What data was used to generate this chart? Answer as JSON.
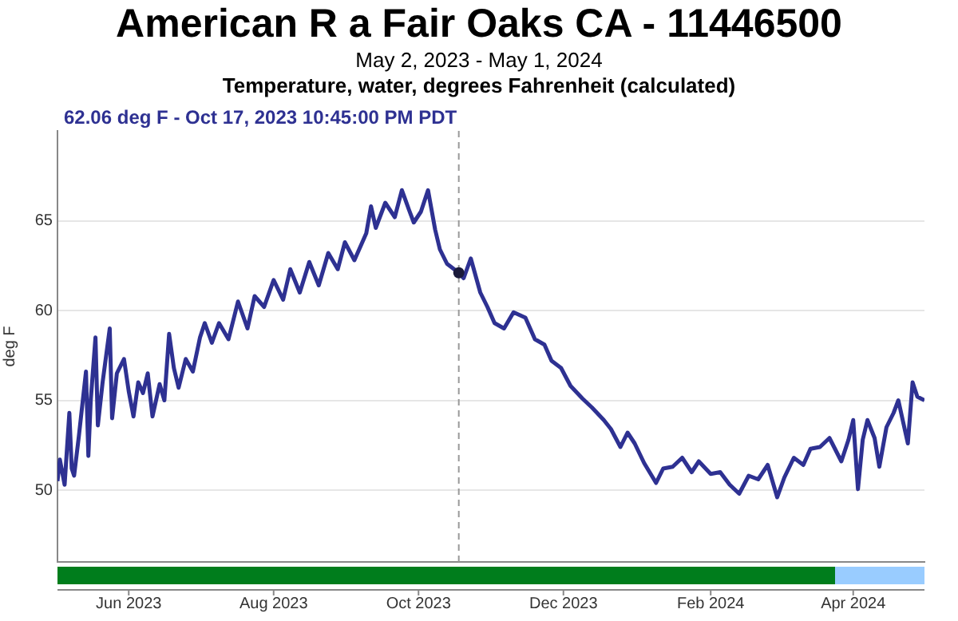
{
  "chart_data": {
    "type": "line",
    "title": "American R a Fair Oaks CA - 11446500",
    "subtitle": "May 2, 2023 - May 1, 2024",
    "ylabel": "deg F",
    "annotations": [
      "Temperature, water, degrees Fahrenheit (calculated)",
      "62.06 deg F - Oct 17, 2023 10:45:00 PM PDT"
    ],
    "x": [
      "2023-05-02",
      "2023-05-03",
      "2023-05-05",
      "2023-05-07",
      "2023-05-08",
      "2023-05-09",
      "2023-05-11",
      "2023-05-14",
      "2023-05-15",
      "2023-05-16",
      "2023-05-18",
      "2023-05-19",
      "2023-05-21",
      "2023-05-24",
      "2023-05-25",
      "2023-05-27",
      "2023-05-30",
      "2023-06-01",
      "2023-06-03",
      "2023-06-05",
      "2023-06-07",
      "2023-06-09",
      "2023-06-11",
      "2023-06-14",
      "2023-06-16",
      "2023-06-18",
      "2023-06-20",
      "2023-06-22",
      "2023-06-25",
      "2023-06-28",
      "2023-07-01",
      "2023-07-03",
      "2023-07-06",
      "2023-07-09",
      "2023-07-13",
      "2023-07-17",
      "2023-07-21",
      "2023-07-24",
      "2023-07-28",
      "2023-08-01",
      "2023-08-05",
      "2023-08-08",
      "2023-08-12",
      "2023-08-16",
      "2023-08-20",
      "2023-08-24",
      "2023-08-28",
      "2023-08-31",
      "2023-09-04",
      "2023-09-09",
      "2023-09-11",
      "2023-09-13",
      "2023-09-17",
      "2023-09-21",
      "2023-09-24",
      "2023-09-27",
      "2023-09-29",
      "2023-10-02",
      "2023-10-05",
      "2023-10-08",
      "2023-10-10",
      "2023-10-13",
      "2023-10-17T22:45",
      "2023-10-20",
      "2023-10-23",
      "2023-10-27",
      "2023-10-30",
      "2023-11-02",
      "2023-11-06",
      "2023-11-10",
      "2023-11-15",
      "2023-11-19",
      "2023-11-23",
      "2023-11-26",
      "2023-11-30",
      "2023-12-04",
      "2023-12-09",
      "2023-12-13",
      "2023-12-18",
      "2023-12-21",
      "2023-12-25",
      "2023-12-28",
      "2023-12-31",
      "2024-01-04",
      "2024-01-09",
      "2024-01-12",
      "2024-01-16",
      "2024-01-20",
      "2024-01-24",
      "2024-01-27",
      "2024-02-01",
      "2024-02-05",
      "2024-02-09",
      "2024-02-13",
      "2024-02-17",
      "2024-02-21",
      "2024-02-25",
      "2024-02-29",
      "2024-03-03",
      "2024-03-07",
      "2024-03-11",
      "2024-03-14",
      "2024-03-18",
      "2024-03-22",
      "2024-03-27",
      "2024-03-30",
      "2024-04-01",
      "2024-04-03",
      "2024-04-05",
      "2024-04-07",
      "2024-04-10",
      "2024-04-12",
      "2024-04-15",
      "2024-04-18",
      "2024-04-20",
      "2024-04-22",
      "2024-04-24",
      "2024-04-26",
      "2024-04-28",
      "2024-05-01"
    ],
    "series": [
      {
        "color": "#2e3192",
        "values": [
          50.5,
          51.7,
          50.3,
          54.3,
          51.2,
          50.8,
          53.0,
          56.6,
          51.9,
          55.0,
          58.5,
          53.6,
          56.0,
          59.0,
          54.0,
          56.5,
          57.3,
          55.5,
          54.1,
          56.0,
          55.4,
          56.5,
          54.1,
          55.9,
          55.0,
          58.7,
          56.8,
          55.7,
          57.3,
          56.6,
          58.5,
          59.3,
          58.2,
          59.3,
          58.4,
          60.5,
          59.0,
          60.8,
          60.2,
          61.7,
          60.6,
          62.3,
          61.0,
          62.7,
          61.4,
          63.2,
          62.3,
          63.8,
          62.8,
          64.3,
          65.8,
          64.6,
          66.0,
          65.2,
          66.7,
          65.6,
          64.9,
          65.5,
          66.7,
          64.5,
          63.4,
          62.6,
          62.1,
          61.8,
          62.9,
          61.0,
          60.2,
          59.3,
          59.0,
          59.9,
          59.6,
          58.4,
          58.1,
          57.2,
          56.8,
          55.8,
          55.1,
          54.6,
          53.9,
          53.4,
          52.4,
          53.2,
          52.6,
          51.5,
          50.4,
          51.2,
          51.3,
          51.8,
          51.0,
          51.6,
          50.9,
          51.0,
          50.3,
          49.8,
          50.8,
          50.6,
          51.4,
          49.6,
          50.7,
          51.8,
          51.4,
          52.3,
          52.4,
          52.9,
          51.6,
          52.8,
          53.9,
          50.05,
          52.8,
          53.9,
          52.9,
          51.3,
          53.5,
          54.3,
          55.0,
          53.8,
          52.6,
          56.0,
          55.2,
          55.0
        ]
      }
    ],
    "xlim": [
      "2023-05-02",
      "2024-05-01"
    ],
    "xticks": [
      {
        "value": "2023-06-01",
        "label": "Jun 2023"
      },
      {
        "value": "2023-08-01",
        "label": "Aug 2023"
      },
      {
        "value": "2023-10-01",
        "label": "Oct 2023"
      },
      {
        "value": "2023-12-01",
        "label": "Dec 2023"
      },
      {
        "value": "2024-02-01",
        "label": "Feb 2024"
      },
      {
        "value": "2024-04-01",
        "label": "Apr 2024"
      }
    ],
    "ylim": [
      46,
      70
    ],
    "yticks": [
      50,
      55,
      60,
      65
    ],
    "ref_lines": [
      {
        "axis": "x",
        "value": "2023-10-17T22:45",
        "color": "#999999",
        "line_style": "dashed"
      }
    ],
    "grid": "y",
    "legend": false,
    "marker": "none",
    "line_style": "solid"
  }
}
